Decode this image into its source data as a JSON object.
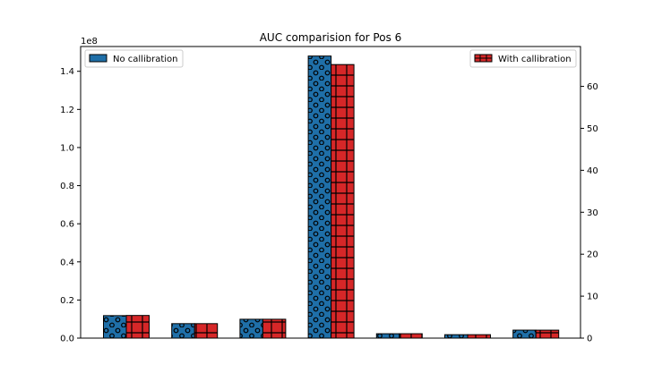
{
  "chart_data": {
    "type": "bar",
    "title": "AUC comparision for Pos 6",
    "categories": [
      "",
      "",
      "",
      "",
      "",
      "",
      ""
    ],
    "left_axis": {
      "ylim": [
        0,
        1.53
      ],
      "ticks": [
        0.0,
        0.2,
        0.4,
        0.6,
        0.8,
        1.0,
        1.2,
        1.4
      ],
      "tick_labels": [
        "0.0",
        "0.2",
        "0.4",
        "0.6",
        "0.8",
        "1.0",
        "1.2",
        "1.4"
      ],
      "offset_label": "1e8"
    },
    "right_axis": {
      "ylim": [
        0,
        69.5
      ],
      "ticks": [
        0,
        10,
        20,
        30,
        40,
        50,
        60
      ],
      "tick_labels": [
        "0",
        "10",
        "20",
        "30",
        "40",
        "50",
        "60"
      ]
    },
    "series": [
      {
        "name": "No callibration",
        "axis": "left",
        "color": "#1f6fa8",
        "hatch": "circles",
        "values": [
          0.118,
          0.076,
          0.099,
          1.48,
          0.023,
          0.018,
          0.042
        ]
      },
      {
        "name": "With callibration",
        "axis": "right",
        "color": "#d62728",
        "hatch": "grid",
        "values": [
          5.4,
          3.45,
          4.5,
          65.2,
          1.05,
          0.82,
          1.9
        ]
      }
    ],
    "legends": [
      {
        "position": "upper-left",
        "label": "No callibration"
      },
      {
        "position": "upper-right",
        "label": "With callibration"
      }
    ],
    "grid": false
  }
}
